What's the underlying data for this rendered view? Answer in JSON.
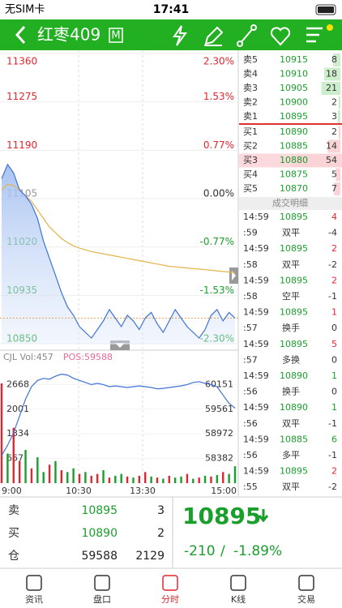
{
  "status_bar": {
    "carrier": "无SIM卡",
    "time": "17:41"
  },
  "header": {
    "title": "红枣409",
    "badge": "M"
  },
  "chart": {
    "type": "line",
    "price_ticks": [
      11360,
      11275,
      11190,
      11105,
      11020,
      10935,
      10850
    ],
    "pct_ticks": [
      "2.30%",
      "1.53%",
      "0.77%",
      "0.00%",
      "-0.77%",
      "-1.53%",
      "-2.30%"
    ],
    "ylim": [
      10850,
      11360
    ],
    "x_labels": [
      "9:00",
      "10:30",
      "13:30",
      "15:00"
    ],
    "price": {
      "color": "#3f72d8",
      "values": [
        11140,
        11165,
        11150,
        11120,
        11110,
        11095,
        11070,
        11030,
        11000,
        10970,
        10940,
        10915,
        10900,
        10880,
        10870,
        10860,
        10875,
        10890,
        10910,
        10895,
        10880,
        10900,
        10890,
        10875,
        10895,
        10905,
        10885,
        10870,
        10890,
        10910,
        10895,
        10880,
        10870,
        10860,
        10875,
        10900,
        10910,
        10890,
        10905,
        10895
      ]
    },
    "average": {
      "color": "#e3b447",
      "values": [
        11120,
        11130,
        11128,
        11120,
        11110,
        11100,
        11085,
        11070,
        11055,
        11045,
        11035,
        11028,
        11022,
        11018,
        11015,
        11012,
        11010,
        11008,
        11006,
        11004,
        11002,
        11000,
        10998,
        10996,
        10994,
        10992,
        10990,
        10988,
        10986,
        10985,
        10984,
        10983,
        10982,
        10981,
        10980,
        10979,
        10978,
        10977,
        10976,
        10975
      ]
    },
    "volume_title": "CJL Vol:457",
    "position_title": "POS:59588",
    "volume_ticks": [
      2668,
      2001,
      1334,
      667
    ],
    "volume_lim": [
      0,
      3335
    ],
    "position_ticks": [
      60151,
      59561,
      58972,
      58382
    ],
    "position_lim": [
      57792,
      60740
    ],
    "volume": {
      "values": [
        2700,
        800,
        1500,
        600,
        900,
        400,
        700,
        300,
        500,
        600,
        350,
        300,
        400,
        250,
        300,
        200,
        250,
        350,
        150,
        200,
        250,
        180,
        150,
        200,
        300,
        180,
        150,
        120,
        200,
        150,
        180,
        250,
        120,
        150,
        200,
        180,
        220,
        300,
        250,
        457
      ],
      "colors": [
        "#e0262e",
        "#1a9e2c",
        "#e0262e",
        "#e0262e",
        "#1a9e2c",
        "#e0262e",
        "#1a9e2c",
        "#1a9e2c",
        "#e0262e",
        "#1a9e2c",
        "#e0262e",
        "#1a9e2c",
        "#1a9e2c",
        "#e0262e",
        "#1a9e2c",
        "#e0262e",
        "#e0262e",
        "#1a9e2c",
        "#e0262e",
        "#1a9e2c",
        "#1a9e2c",
        "#e0262e",
        "#1a9e2c",
        "#e0262e",
        "#e0262e",
        "#1a9e2c",
        "#e0262e",
        "#1a9e2c",
        "#e0262e",
        "#1a9e2c",
        "#1a9e2c",
        "#e0262e",
        "#1a9e2c",
        "#e0262e",
        "#1a9e2c",
        "#e0262e",
        "#1a9e2c",
        "#e0262e",
        "#1a9e2c",
        "#1a9e2c"
      ]
    },
    "position": {
      "color": "#3f72d8",
      "values": [
        58450,
        58700,
        59000,
        59400,
        59800,
        60100,
        60250,
        60300,
        60280,
        60350,
        60400,
        60380,
        60300,
        60250,
        60200,
        60150,
        60180,
        60150,
        60100,
        60120,
        60100,
        60080,
        60100,
        60120,
        60100,
        60080,
        60050,
        60060,
        60080,
        60100,
        60120,
        60150,
        60200,
        60220,
        60180,
        60150,
        60100,
        59900,
        59700,
        59588
      ]
    }
  },
  "order_book": {
    "asks": [
      [
        "卖5",
        10915,
        8
      ],
      [
        "卖4",
        10910,
        18
      ],
      [
        "卖3",
        10905,
        21
      ],
      [
        "卖2",
        10900,
        2
      ],
      [
        "卖1",
        10895,
        3
      ]
    ],
    "bids": [
      [
        "买1",
        10890,
        2
      ],
      [
        "买2",
        10885,
        14
      ],
      [
        "买3",
        10880,
        54
      ],
      [
        "买4",
        10875,
        5
      ],
      [
        "买5",
        10870,
        7
      ]
    ]
  },
  "trades": {
    "title": "成交明细",
    "rows": [
      [
        "14:59",
        10895,
        4
      ],
      [
        ":59",
        "双平",
        -4
      ],
      [
        "14:59",
        10895,
        2
      ],
      [
        ":58",
        "双平",
        -2
      ],
      [
        "14:59",
        10895,
        2
      ],
      [
        ":58",
        "空平",
        -1
      ],
      [
        "14:59",
        10895,
        1
      ],
      [
        ":57",
        "换手",
        0
      ],
      [
        "14:59",
        10895,
        5
      ],
      [
        ":57",
        "多换",
        0
      ],
      [
        "14:59",
        10890,
        1
      ],
      [
        ":56",
        "换手",
        0
      ],
      [
        "14:59",
        10890,
        1
      ],
      [
        ":56",
        "双平",
        -1
      ],
      [
        "14:59",
        10885,
        6
      ],
      [
        ":56",
        "多平",
        -1
      ],
      [
        "14:59",
        10895,
        2
      ],
      [
        ":55",
        "双平",
        -2
      ]
    ]
  },
  "summary": {
    "rows": [
      [
        "卖",
        10895,
        3
      ],
      [
        "买",
        10890,
        2
      ],
      [
        "仓",
        59588,
        2129
      ]
    ],
    "last": 10895,
    "change": -210,
    "separator": "/",
    "change_pct": "-1.89%"
  },
  "tabs": {
    "items": [
      "资讯",
      "盘口",
      "分时",
      "K线",
      "交易"
    ],
    "active": 2
  }
}
